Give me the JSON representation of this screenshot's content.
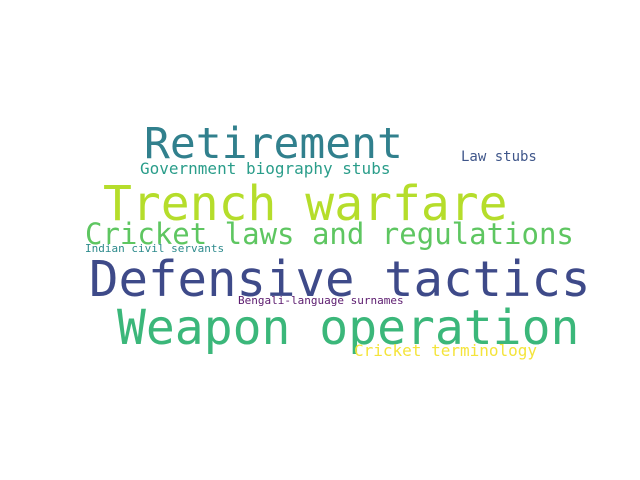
{
  "words": {
    "retirement": {
      "text": "Retirement",
      "color": "#31808d"
    },
    "government_biography": {
      "text": "Government biography stubs",
      "color": "#2a9d8a"
    },
    "law_stubs": {
      "text": "Law stubs",
      "color": "#3f568a"
    },
    "trench_warfare": {
      "text": "Trench warfare",
      "color": "#b5dd2b"
    },
    "cricket_laws": {
      "text": "Cricket laws and regulations",
      "color": "#5ec661"
    },
    "indian_civil": {
      "text": "Indian civil servants",
      "color": "#2d8a8c"
    },
    "defensive_tactics": {
      "text": "Defensive tactics",
      "color": "#3e4a89"
    },
    "bengali_surnames": {
      "text": "Bengali-language surnames",
      "color": "#5b1a6e"
    },
    "weapon_operation": {
      "text": "Weapon operation",
      "color": "#3bb77a"
    },
    "cricket_terminology": {
      "text": "Cricket terminology",
      "color": "#f4e43b"
    }
  }
}
